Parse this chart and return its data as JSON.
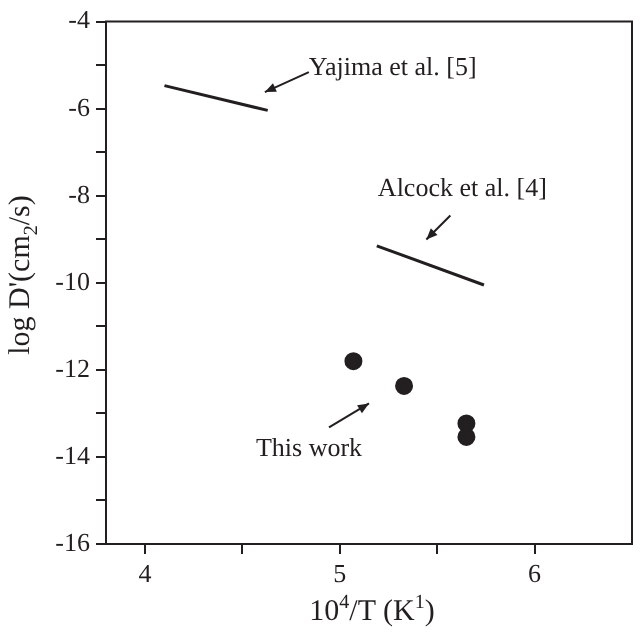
{
  "chart_data": {
    "type": "line",
    "xlabel": "10$^{4}$/T (K$^{1}$)",
    "ylabel": "log D'(cm$_{2}$/s)",
    "series": [
      {
        "color": "#231f20",
        "x": [
          4.1,
          4.63
        ],
        "values": [
          -5.47,
          -6.04
        ]
      },
      {
        "color": "#231f20",
        "x": [
          5.19,
          5.74
        ],
        "values": [
          -9.15,
          -10.05
        ]
      },
      {
        "type": "scatter",
        "color": "#231f20",
        "marker": "circle",
        "x": [
          5.07,
          5.33,
          5.65,
          5.65
        ],
        "values": [
          -11.8,
          -12.37,
          -13.23,
          -13.54
        ]
      }
    ],
    "xlim": [
      3.8,
      6.5
    ],
    "xticks": [
      4,
      {
        "value": 4.5,
        "label": null
      },
      5,
      {
        "value": 5.5,
        "label": null
      },
      6
    ],
    "ylim": [
      -16,
      -4
    ],
    "yticks": [
      -16,
      {
        "value": -15,
        "label": null
      },
      -14,
      {
        "value": -13,
        "label": null
      },
      -12,
      {
        "value": -11,
        "label": null
      },
      -10,
      {
        "value": -9,
        "label": null
      },
      -8,
      {
        "value": -7,
        "label": null
      },
      -6,
      {
        "value": -5,
        "label": null
      },
      -4
    ],
    "annotations": [
      "Yajima et al. [5]",
      "Alcock et al. [4]",
      "This work"
    ],
    "grid": false,
    "legend": false
  }
}
